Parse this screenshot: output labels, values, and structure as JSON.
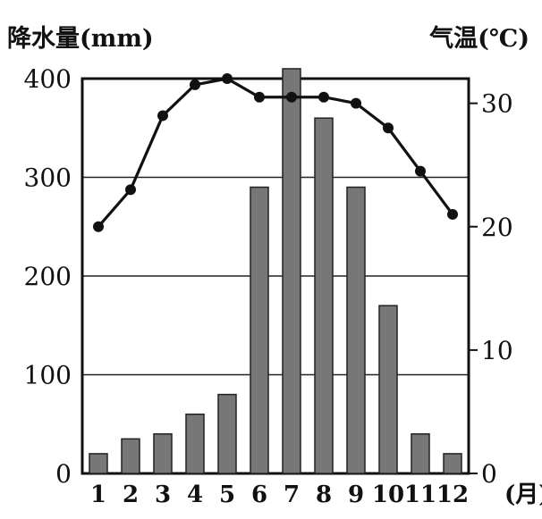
{
  "chart_data": {
    "type": "bar+line",
    "categories": [
      "1",
      "2",
      "3",
      "4",
      "5",
      "6",
      "7",
      "8",
      "9",
      "10",
      "11",
      "12"
    ],
    "x_unit_label": "(月)",
    "left_axis": {
      "label": "降水量(mm)",
      "range": [
        0,
        400
      ],
      "ticks": [
        "0",
        "100",
        "200",
        "300",
        "400"
      ]
    },
    "right_axis": {
      "label": "气温(℃)",
      "range": [
        0,
        32
      ],
      "ticks": [
        "0",
        "10",
        "20",
        "30"
      ]
    },
    "series": [
      {
        "kind": "bar",
        "axis": "left",
        "values": [
          20,
          35,
          40,
          60,
          80,
          290,
          410,
          360,
          290,
          170,
          40,
          20
        ]
      },
      {
        "kind": "line",
        "axis": "right",
        "values": [
          20.0,
          23.0,
          29.0,
          31.5,
          32.0,
          30.5,
          30.5,
          30.5,
          30.0,
          28.0,
          24.5,
          21.0
        ]
      }
    ],
    "gridlines": [
      100,
      200,
      300,
      400
    ],
    "bar_fill": "#777777",
    "line_color": "#111111"
  }
}
